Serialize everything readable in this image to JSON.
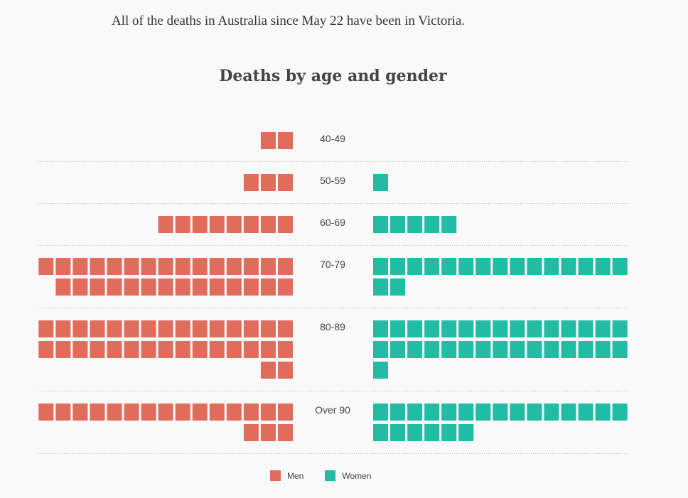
{
  "intro_text": "All of the deaths in Australia since May 22 have been in Victoria.",
  "chart_data": {
    "type": "waffle",
    "title": "Deaths by age and gender",
    "categories": [
      "40-49",
      "50-59",
      "60-69",
      "70-79",
      "80-89",
      "Over 90"
    ],
    "series": [
      {
        "name": "Men",
        "color": "#e06c5c",
        "values": [
          2,
          3,
          8,
          29,
          32,
          18
        ]
      },
      {
        "name": "Women",
        "color": "#22bba3",
        "values": [
          0,
          1,
          5,
          17,
          31,
          21
        ]
      }
    ],
    "units_per_square": 1,
    "legend_position": "bottom-center",
    "gridlines": "dotted separators between age groups"
  },
  "colors": {
    "men": "#e06c5c",
    "women": "#22bba3",
    "separator": "#bbbbbb"
  }
}
